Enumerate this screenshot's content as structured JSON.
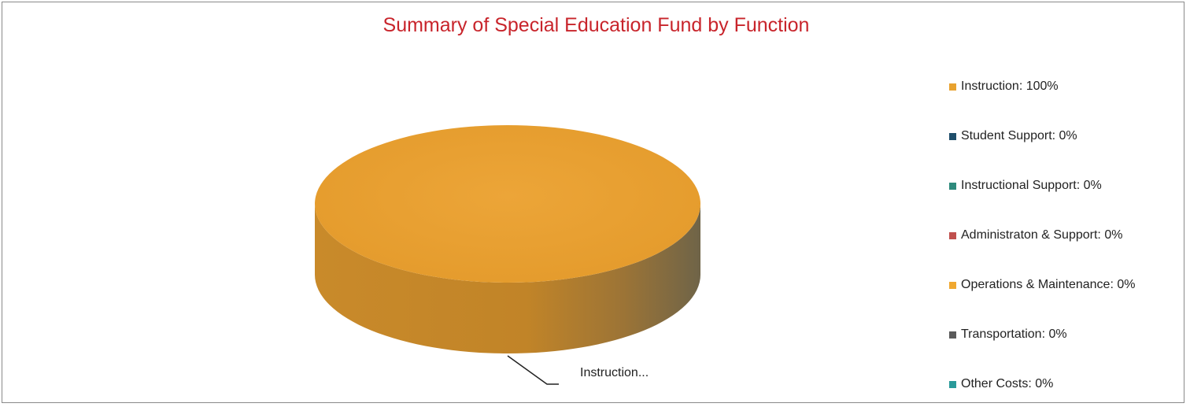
{
  "chart_data": {
    "type": "pie",
    "title": "Summary of Special Education Fund by Function",
    "slices": [
      {
        "label": "Instruction",
        "value": 100,
        "color": "#e8a22f"
      },
      {
        "label": "Student Support",
        "value": 0,
        "color": "#1f4e6b"
      },
      {
        "label": "Instructional Support",
        "value": 0,
        "color": "#2e8a7c"
      },
      {
        "label": "Administraton & Support",
        "value": 0,
        "color": "#c0504d"
      },
      {
        "label": "Operations & Maintenance",
        "value": 0,
        "color": "#f0a830"
      },
      {
        "label": "Transportation",
        "value": 0,
        "color": "#5a5a5a"
      },
      {
        "label": "Other Costs",
        "value": 0,
        "color": "#2a9a9a"
      }
    ],
    "legend": [
      "Instruction: 100%",
      "Student Support: 0%",
      "Instructional Support: 0%",
      "Administraton & Support: 0%",
      "Operations & Maintenance: 0%",
      "Transportation: 0%",
      "Other Costs: 0%"
    ],
    "legend_position": "right",
    "data_labels": [
      "Instruction..."
    ],
    "style": "3d"
  }
}
